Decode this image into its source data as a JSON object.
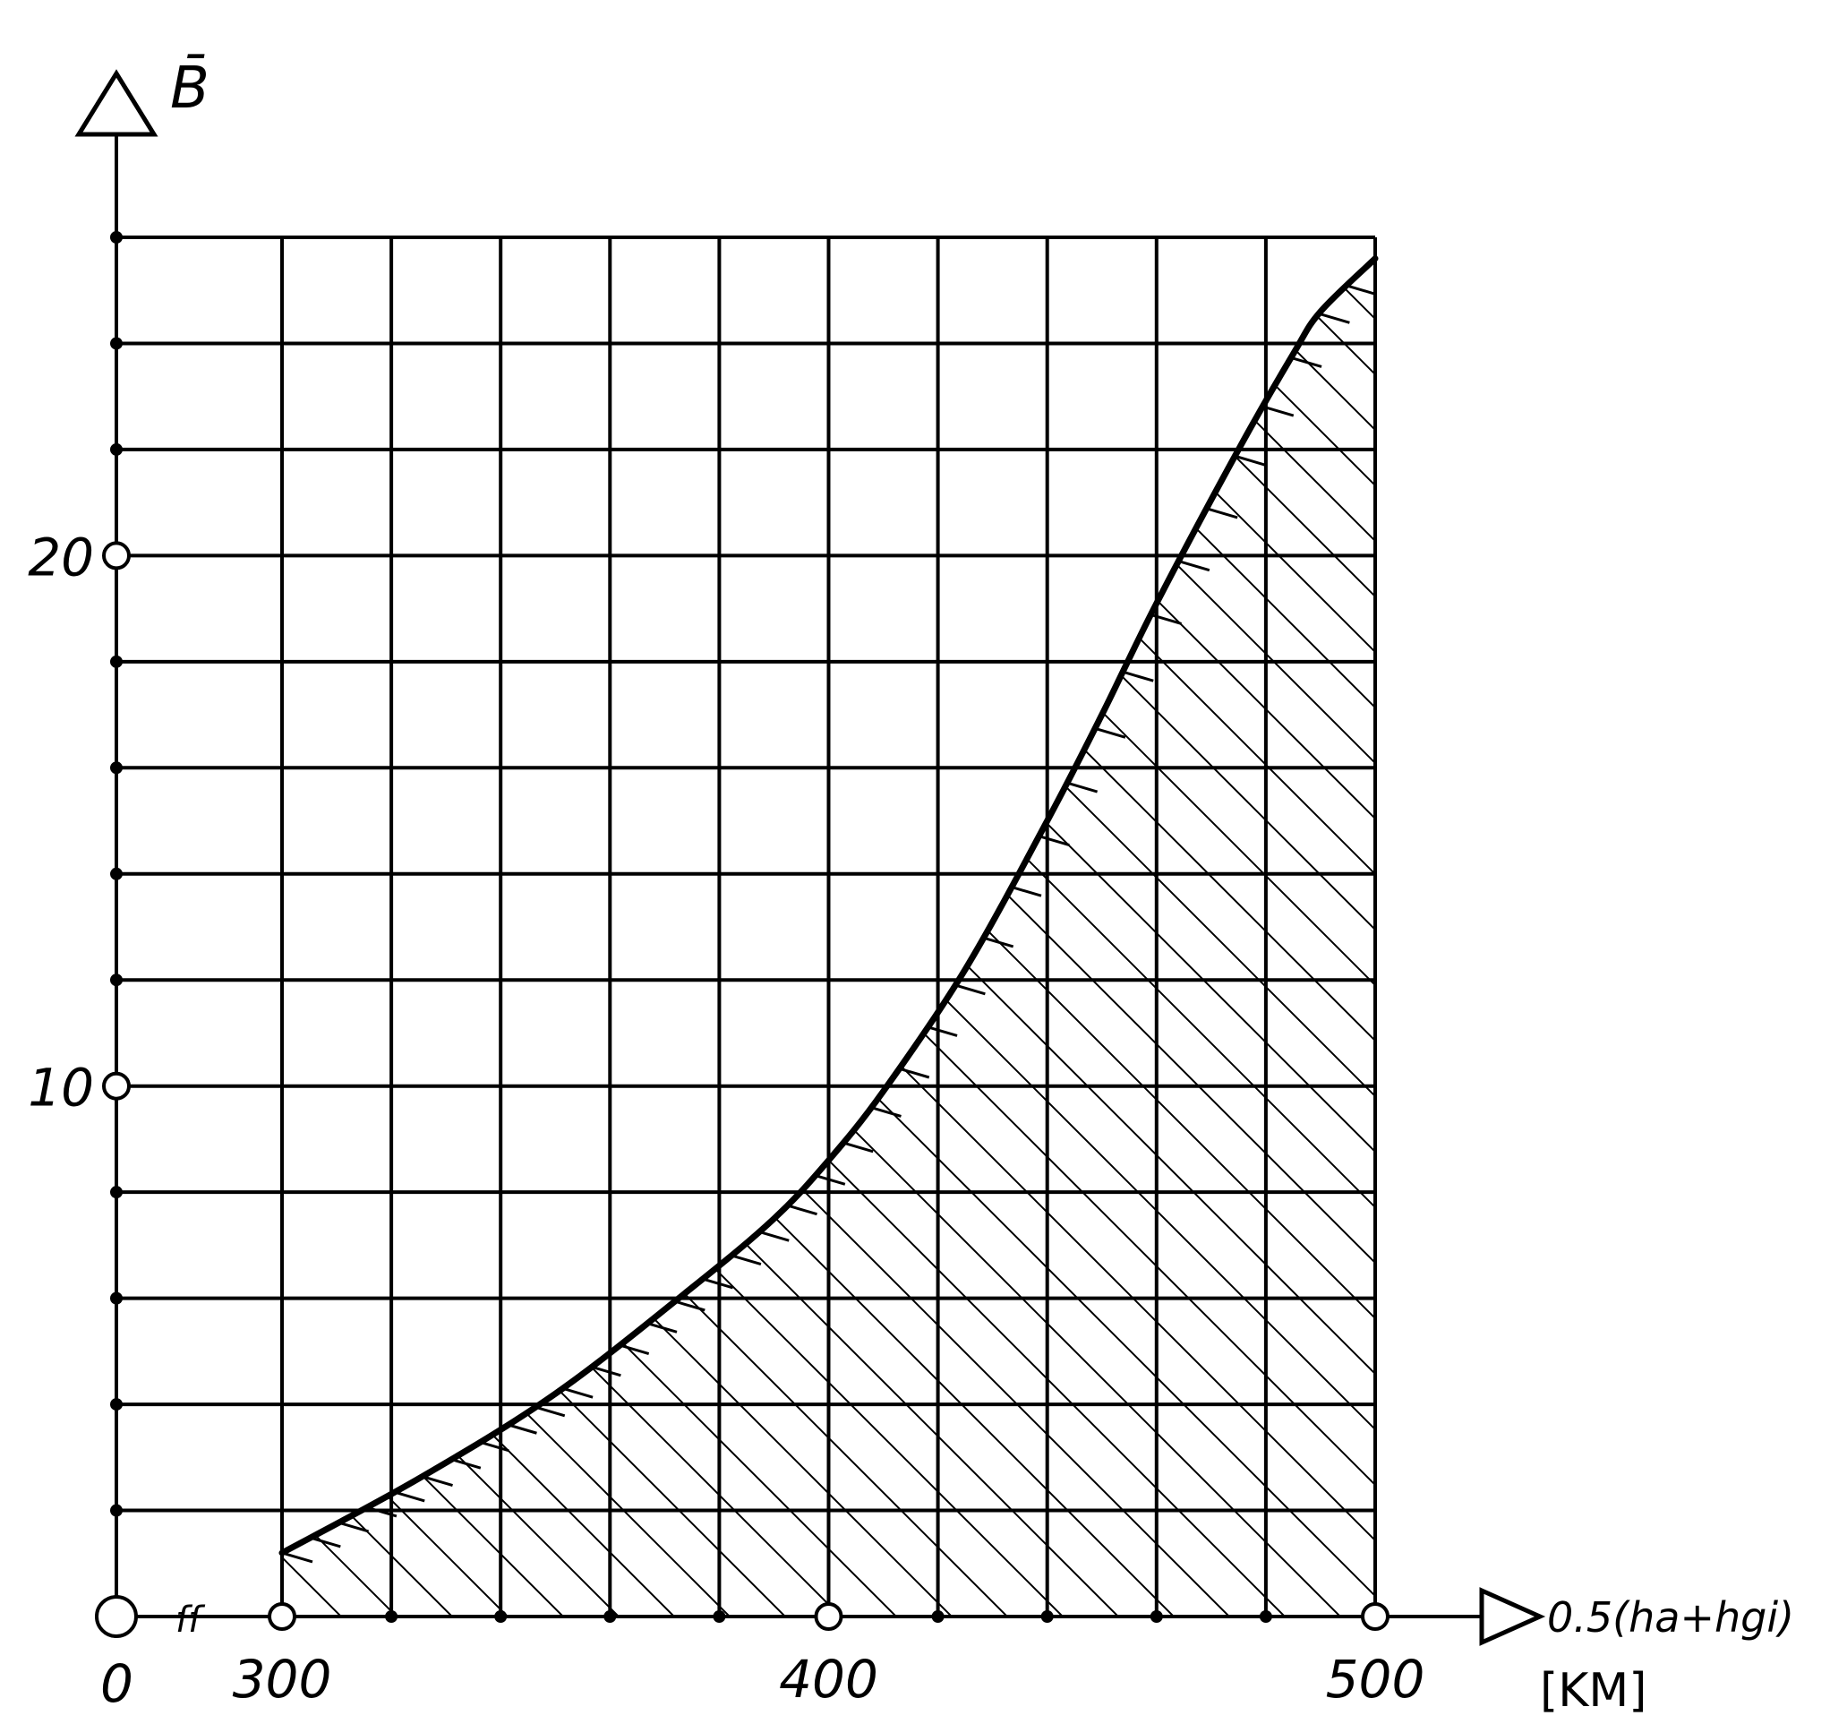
{
  "chart_data": {
    "type": "area",
    "ylabel": "B̄",
    "xlabel": "0.5(ha+hgi)",
    "xunit": "[KM]",
    "origin_label": "0",
    "xlim": [
      300,
      500
    ],
    "ylim": [
      0,
      26
    ],
    "x_ticks": [
      {
        "value": 300,
        "label": "300"
      },
      {
        "value": 400,
        "label": "400"
      },
      {
        "value": 500,
        "label": "500"
      }
    ],
    "y_ticks": [
      {
        "value": 10,
        "label": "10"
      },
      {
        "value": 20,
        "label": "20"
      }
    ],
    "x_minor_step": 20,
    "y_minor_step": 2,
    "grid": true,
    "hatched_region": "below curve",
    "series": [
      {
        "x": [
          300,
          325,
          350,
          375,
          390,
          400,
          410,
          425,
          440,
          450,
          460,
          475,
          485,
          490,
          500
        ],
        "values": [
          1.2,
          2.6,
          4.2,
          6.2,
          7.5,
          8.6,
          9.9,
          12.2,
          15.0,
          17.0,
          19.1,
          22.0,
          23.8,
          24.6,
          25.6
        ]
      }
    ]
  }
}
